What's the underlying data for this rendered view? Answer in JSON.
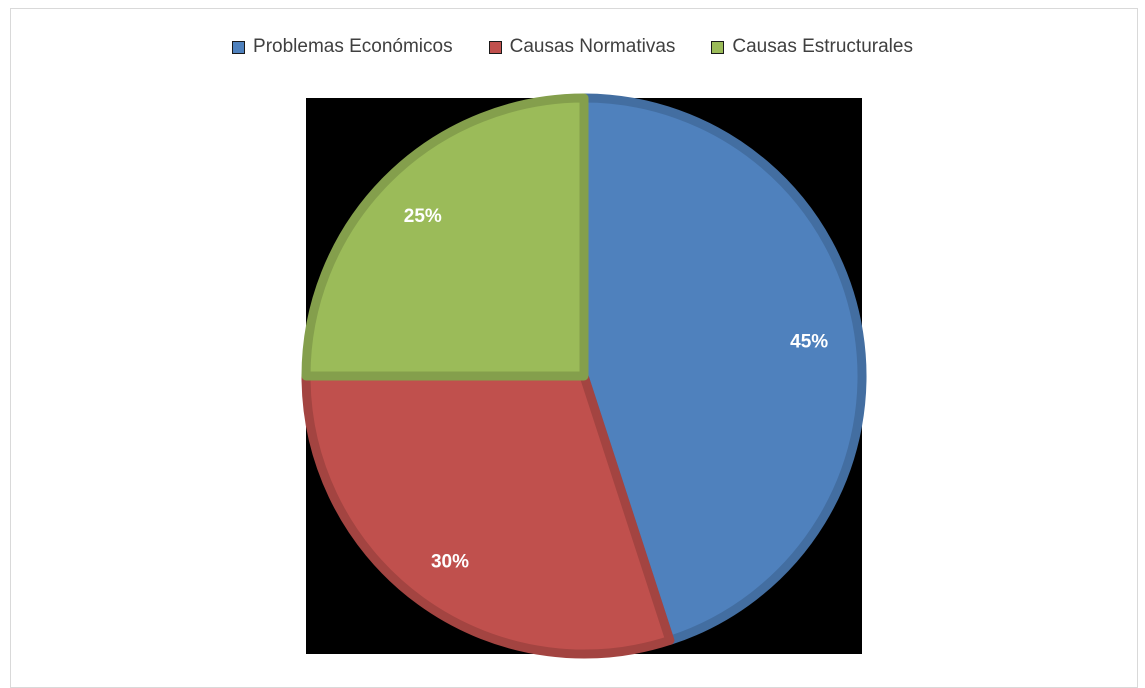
{
  "chart_data": {
    "type": "pie",
    "categories": [
      "Problemas Económicos",
      "Causas Normativas",
      "Causas Estructurales"
    ],
    "values": [
      45,
      30,
      25
    ],
    "data_labels": [
      "45%",
      "30%",
      "25%"
    ],
    "colors": [
      "#4f81bd",
      "#c0504d",
      "#9bbb59"
    ],
    "title": "",
    "legend_position": "top"
  }
}
